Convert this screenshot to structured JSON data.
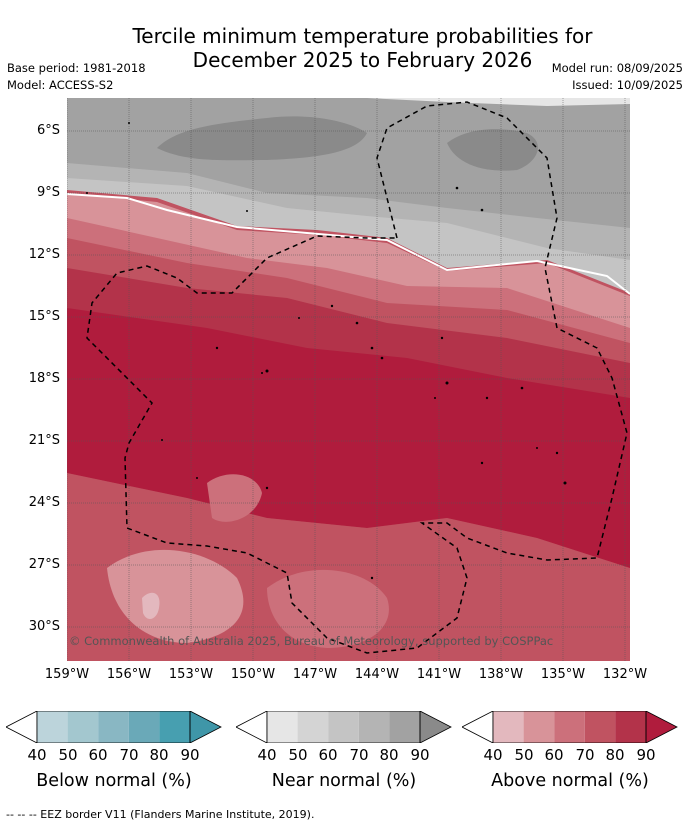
{
  "title": {
    "line1": "Tercile minimum temperature probabilities for",
    "line2": "December 2025 to February 2026"
  },
  "meta": {
    "base_period": "Base period: 1981-2018",
    "model": "Model: ACCESS-S2",
    "model_run": "Model run: 08/09/2025",
    "issued": "Issued: 10/09/2025"
  },
  "map": {
    "lat_ticks": [
      "6°S",
      "9°S",
      "12°S",
      "15°S",
      "18°S",
      "21°S",
      "24°S",
      "27°S",
      "30°S"
    ],
    "lon_ticks": [
      "159°W",
      "156°W",
      "153°W",
      "150°W",
      "147°W",
      "144°W",
      "141°W",
      "138°W",
      "135°W",
      "132°W"
    ],
    "copyright": "© Commonwealth of Australia 2025, Bureau of Meteorology, supported by COSPPac"
  },
  "legends": [
    {
      "title": "Below normal (%)",
      "colors": [
        "#bcd4db",
        "#a3c7cf",
        "#89b7c3",
        "#6aa9b8",
        "#479fb0"
      ],
      "ticks": [
        "40",
        "50",
        "60",
        "70",
        "80",
        "90"
      ]
    },
    {
      "title": "Near normal (%)",
      "colors": [
        "#e6e6e6",
        "#d4d4d4",
        "#c4c4c4",
        "#b4b4b4",
        "#a2a2a2"
      ],
      "ticks": [
        "40",
        "50",
        "60",
        "70",
        "80",
        "90"
      ]
    },
    {
      "title": "Above normal (%)",
      "colors": [
        "#e3b8be",
        "#d89399",
        "#cc707b",
        "#c05361",
        "#b3334a"
      ],
      "ticks": [
        "40",
        "50",
        "60",
        "70",
        "80",
        "90"
      ]
    }
  ],
  "legend_end_colors": [
    "#3f96a8",
    "#8a8a8a",
    "#b01c3d"
  ],
  "footer": "-- -- -- EEZ border V11 (Flanders Marine Institute, 2019)."
}
